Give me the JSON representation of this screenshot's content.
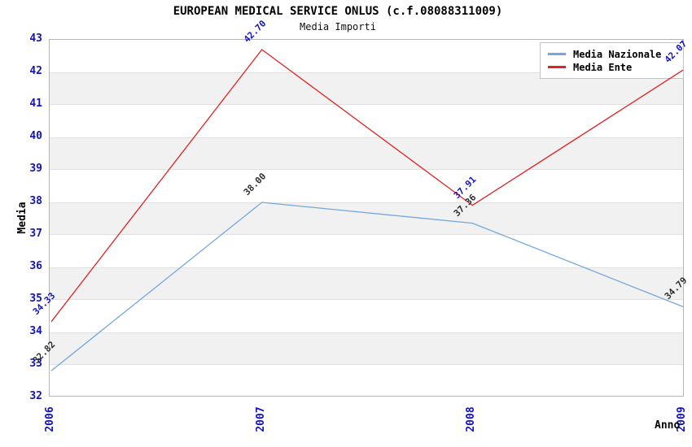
{
  "title": "EUROPEAN MEDICAL SERVICE ONLUS (c.f.08088311009)",
  "subtitle": "Media Importi",
  "axes": {
    "y_label": "Media",
    "x_label": "Anno",
    "y_min": 32,
    "y_max": 43,
    "x_tick_labels": [
      "2006",
      "2007",
      "2008",
      "2009"
    ]
  },
  "colors": {
    "tick_text": "#1111cc",
    "band_gray": "#f1f1f1",
    "plot_border": "#b6b6b6"
  },
  "legend": {
    "entries": [
      {
        "label": "Media Nazionale",
        "color": "#74a7dc"
      },
      {
        "label": "Media Ente",
        "color": "#e02222"
      }
    ]
  },
  "chart_data": {
    "type": "line",
    "x": [
      2006,
      2007,
      2008,
      2009
    ],
    "series": [
      {
        "name": "Media Nazionale",
        "color": "#74a7dc",
        "label_color": "#2e2e2e",
        "values": [
          32.82,
          38.0,
          37.36,
          34.79
        ]
      },
      {
        "name": "Media Ente",
        "color": "#e02222",
        "label_color": "#1414cc",
        "values": [
          34.33,
          42.7,
          37.91,
          42.07
        ]
      }
    ],
    "title": "EUROPEAN MEDICAL SERVICE ONLUS (c.f.08088311009)",
    "subtitle": "Media Importi",
    "xlabel": "Anno",
    "ylabel": "Media",
    "ylim": [
      32,
      43
    ],
    "grid": "alternating horizontal gray bands, gray band below each even tick",
    "legend_position": "top-right inside plot, boxed",
    "point_labels_rotation_deg": -45
  }
}
